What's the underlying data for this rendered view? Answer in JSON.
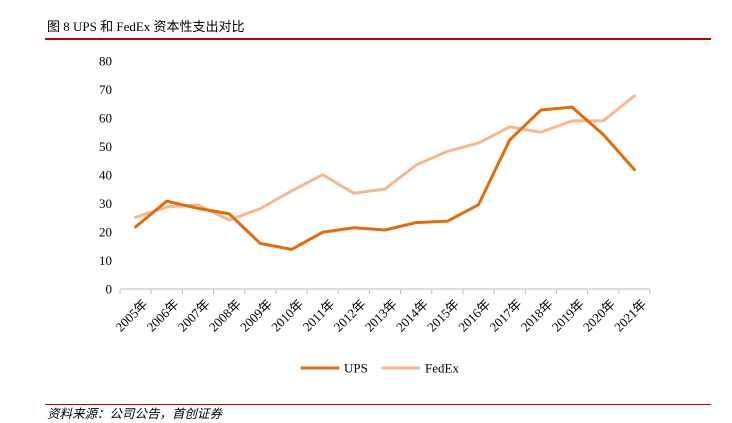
{
  "figure": {
    "title": "图 8 UPS 和 FedEx 资本性支出对比",
    "source": "资料来源：公司公告，首创证券"
  },
  "chart_data": {
    "type": "line",
    "title": "图 8 UPS 和 FedEx 资本性支出对比",
    "xlabel": "",
    "ylabel": "",
    "ylim": [
      0,
      80
    ],
    "yticks": [
      0,
      10,
      20,
      30,
      40,
      50,
      60,
      70,
      80
    ],
    "grid": false,
    "legend_position": "bottom",
    "categories": [
      "2005年",
      "2006年",
      "2007年",
      "2008年",
      "2009年",
      "2010年",
      "2011年",
      "2012年",
      "2013年",
      "2014年",
      "2015年",
      "2016年",
      "2017年",
      "2018年",
      "2019年",
      "2020年",
      "2021年"
    ],
    "series": [
      {
        "name": "UPS",
        "color": "#e36c0a",
        "values": [
          21.8,
          30.8,
          28.3,
          26.4,
          16.0,
          13.9,
          19.9,
          21.5,
          20.7,
          23.3,
          23.8,
          29.6,
          52.3,
          62.8,
          63.8,
          54.2,
          41.9
        ]
      },
      {
        "name": "FedEx",
        "color": "#f5b88e",
        "values": [
          25.1,
          28.8,
          29.5,
          24.2,
          28.2,
          34.4,
          40.1,
          33.6,
          35.1,
          43.5,
          48.3,
          51.2,
          56.9,
          55.0,
          59.0,
          59.0,
          67.8
        ]
      }
    ]
  }
}
